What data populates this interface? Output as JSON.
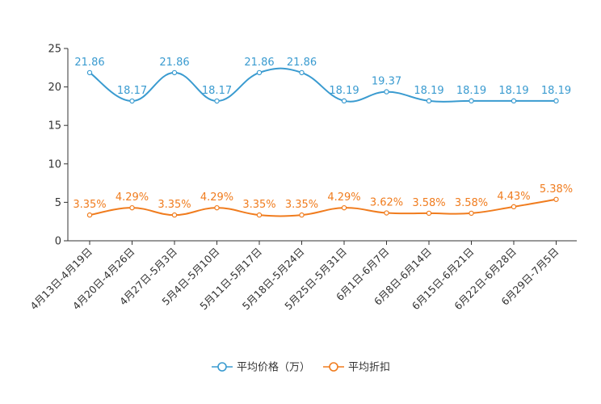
{
  "chart_data": {
    "type": "line",
    "title": "",
    "xlabel": "",
    "ylabel": "",
    "ylim": [
      0,
      25
    ],
    "yticks": [
      0,
      5,
      10,
      15,
      20,
      25
    ],
    "grid": false,
    "legend_position": "bottom-center",
    "categories": [
      "4月13日-4月19日",
      "4月20日-4月26日",
      "4月27日-5月3日",
      "5月4日-5月10日",
      "5月11日-5月17日",
      "5月18日-5月24日",
      "5月25日-5月31日",
      "6月1日-6月7日",
      "6月8日-6月14日",
      "6月15日-6月21日",
      "6月22日-6月28日",
      "6月29日-7月5日"
    ],
    "series": [
      {
        "name": "平均价格（万）",
        "color": "#3a9bd0",
        "values": [
          21.86,
          18.17,
          21.86,
          18.17,
          21.86,
          21.86,
          18.19,
          19.37,
          18.19,
          18.19,
          18.19,
          18.19
        ],
        "labels": [
          "21.86",
          "18.17",
          "21.86",
          "18.17",
          "21.86",
          "21.86",
          "18.19",
          "19.37",
          "18.19",
          "18.19",
          "18.19",
          "18.19"
        ]
      },
      {
        "name": "平均折扣",
        "color": "#f07c1e",
        "values": [
          3.35,
          4.29,
          3.35,
          4.29,
          3.35,
          3.35,
          4.29,
          3.62,
          3.58,
          3.58,
          4.43,
          5.38
        ],
        "labels": [
          "3.35%",
          "4.29%",
          "3.35%",
          "4.29%",
          "3.35%",
          "3.35%",
          "4.29%",
          "3.62%",
          "3.58%",
          "3.58%",
          "4.43%",
          "5.38%"
        ]
      }
    ]
  }
}
